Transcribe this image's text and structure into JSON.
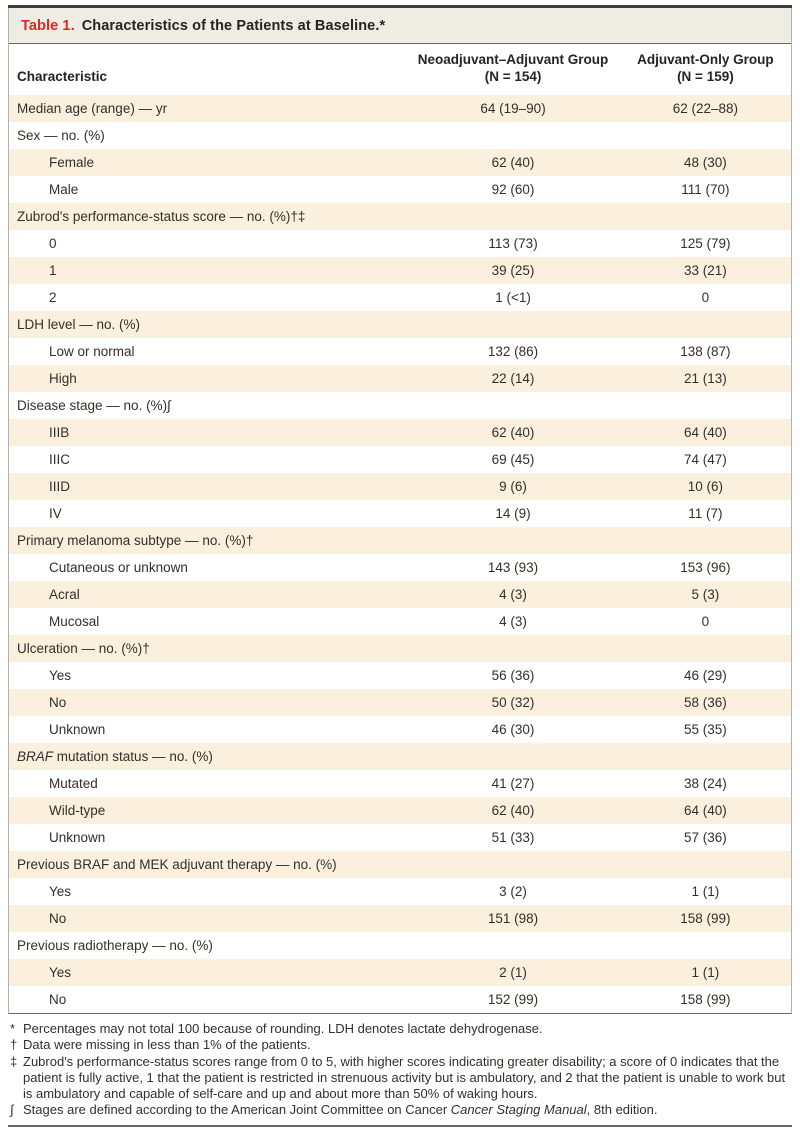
{
  "colors": {
    "accent_red": "#d92b23",
    "stripe_cream": "#fbf0de",
    "title_bar_bg": "#efece3",
    "rule_dark": "#3f3d3a",
    "rule_mid": "#69675f",
    "border_side": "#b3b0ab",
    "text": "#332f2b"
  },
  "title": {
    "label": "Table 1.",
    "text": "Characteristics of the Patients at Baseline.*"
  },
  "columns": {
    "characteristic": "Characteristic",
    "group1_line1": "Neoadjuvant–Adjuvant Group",
    "group1_line2": "(N = 154)",
    "group2_line1": "Adjuvant-Only Group",
    "group2_line2": "(N = 159)"
  },
  "rows": [
    {
      "label": "Median age (range) — yr",
      "indent": 0,
      "v1": "64 (19–90)",
      "v2": "62 (22–88)"
    },
    {
      "label": "Sex — no. (%)",
      "indent": 0,
      "v1": "",
      "v2": ""
    },
    {
      "label": "Female",
      "indent": 1,
      "v1": "62 (40)",
      "v2": "48 (30)"
    },
    {
      "label": "Male",
      "indent": 1,
      "v1": "92 (60)",
      "v2": "111 (70)"
    },
    {
      "label": "Zubrod's performance-status score — no. (%)†‡",
      "indent": 0,
      "v1": "",
      "v2": ""
    },
    {
      "label": "0",
      "indent": 1,
      "v1": "113 (73)",
      "v2": "125 (79)"
    },
    {
      "label": "1",
      "indent": 1,
      "v1": "39 (25)",
      "v2": "33 (21)"
    },
    {
      "label": "2",
      "indent": 1,
      "v1": "1 (<1)",
      "v2": "0"
    },
    {
      "label": "LDH level — no. (%)",
      "indent": 0,
      "v1": "",
      "v2": ""
    },
    {
      "label": "Low or normal",
      "indent": 1,
      "v1": "132 (86)",
      "v2": "138 (87)"
    },
    {
      "label": "High",
      "indent": 1,
      "v1": "22 (14)",
      "v2": "21 (13)"
    },
    {
      "label": "Disease stage — no. (%)∫",
      "indent": 0,
      "v1": "",
      "v2": ""
    },
    {
      "label": "IIIB",
      "indent": 1,
      "v1": "62 (40)",
      "v2": "64 (40)"
    },
    {
      "label": "IIIC",
      "indent": 1,
      "v1": "69 (45)",
      "v2": "74 (47)"
    },
    {
      "label": "IIID",
      "indent": 1,
      "v1": "9 (6)",
      "v2": "10 (6)"
    },
    {
      "label": "IV",
      "indent": 1,
      "v1": "14 (9)",
      "v2": "11 (7)"
    },
    {
      "label": "Primary melanoma subtype — no. (%)†",
      "indent": 0,
      "v1": "",
      "v2": ""
    },
    {
      "label": "Cutaneous or unknown",
      "indent": 1,
      "v1": "143 (93)",
      "v2": "153 (96)"
    },
    {
      "label": "Acral",
      "indent": 1,
      "v1": "4 (3)",
      "v2": "5 (3)"
    },
    {
      "label": "Mucosal",
      "indent": 1,
      "v1": "4 (3)",
      "v2": "0"
    },
    {
      "label": "Ulceration — no. (%)†",
      "indent": 0,
      "v1": "",
      "v2": ""
    },
    {
      "label": "Yes",
      "indent": 1,
      "v1": "56 (36)",
      "v2": "46 (29)"
    },
    {
      "label": "No",
      "indent": 1,
      "v1": "50 (32)",
      "v2": "58 (36)"
    },
    {
      "label": "Unknown",
      "indent": 1,
      "v1": "46 (30)",
      "v2": "55 (35)"
    },
    {
      "italic_prefix": "BRAF",
      "label": " mutation status — no. (%)",
      "indent": 0,
      "v1": "",
      "v2": ""
    },
    {
      "label": "Mutated",
      "indent": 1,
      "v1": "41 (27)",
      "v2": "38 (24)"
    },
    {
      "label": "Wild-type",
      "indent": 1,
      "v1": "62 (40)",
      "v2": "64 (40)"
    },
    {
      "label": "Unknown",
      "indent": 1,
      "v1": "51 (33)",
      "v2": "57 (36)"
    },
    {
      "label": "Previous BRAF and MEK adjuvant therapy — no. (%)",
      "indent": 0,
      "v1": "",
      "v2": ""
    },
    {
      "label": "Yes",
      "indent": 1,
      "v1": "3 (2)",
      "v2": "1 (1)"
    },
    {
      "label": "No",
      "indent": 1,
      "v1": "151 (98)",
      "v2": "158 (99)"
    },
    {
      "label": "Previous radiotherapy — no. (%)",
      "indent": 0,
      "v1": "",
      "v2": ""
    },
    {
      "label": "Yes",
      "indent": 1,
      "v1": "2 (1)",
      "v2": "1 (1)"
    },
    {
      "label": "No",
      "indent": 1,
      "v1": "152 (99)",
      "v2": "158 (99)"
    }
  ],
  "footnotes": [
    {
      "symbol": "*",
      "parts": [
        {
          "text": "Percentages may not total 100 because of rounding. LDH denotes lactate dehydrogenase."
        }
      ]
    },
    {
      "symbol": "†",
      "parts": [
        {
          "text": "Data were missing in less than 1% of the patients."
        }
      ]
    },
    {
      "symbol": "‡",
      "parts": [
        {
          "text": "Zubrod's performance-status scores range from 0 to 5, with higher scores indicating greater disability; a score of 0 indicates that the patient is fully active, 1 that the patient is restricted in strenuous activity but is ambulatory, and 2 that the patient is unable to work but is ambulatory and capable of self-care and up and about more than 50% of waking hours."
        }
      ]
    },
    {
      "symbol": "∫",
      "parts": [
        {
          "text": "Stages are defined according to the American Joint Committee on Cancer "
        },
        {
          "text": "Cancer Staging Manual",
          "italic": true
        },
        {
          "text": ", 8th edition."
        }
      ]
    }
  ]
}
